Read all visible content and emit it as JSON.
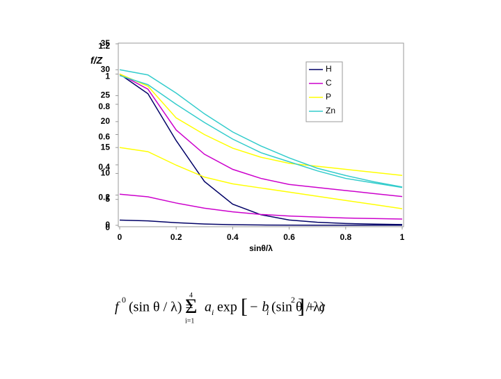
{
  "chart_data": {
    "type": "line",
    "y_label": "f/Z",
    "x_label": "sinθ/λ",
    "x": [
      0,
      0.1,
      0.2,
      0.3,
      0.4,
      0.5,
      0.6,
      0.7,
      0.8,
      0.9,
      1
    ],
    "xlim": [
      0,
      1
    ],
    "xticks": [
      0,
      0.2,
      0.4,
      0.6,
      0.8,
      1
    ],
    "ylim": [
      0,
      1.2
    ],
    "yticks": [
      0,
      0.2,
      0.4,
      0.6,
      0.8,
      1,
      1.2
    ],
    "y2lim": [
      0,
      35
    ],
    "y2ticks": [
      0,
      5,
      10,
      15,
      20,
      25,
      30,
      35
    ],
    "legend": "top-right",
    "series": [
      {
        "name": "H",
        "color": "#000066",
        "values": [
          1,
          0.87,
          0.56,
          0.29,
          0.14,
          0.07,
          0.035,
          0.02,
          0.012,
          0.008,
          0.005
        ]
      },
      {
        "name": "C",
        "color": "#cc00cc",
        "values": [
          1,
          0.9,
          0.63,
          0.47,
          0.37,
          0.31,
          0.27,
          0.25,
          0.23,
          0.21,
          0.19
        ]
      },
      {
        "name": "P",
        "color": "#ffff00",
        "values": [
          1,
          0.92,
          0.71,
          0.6,
          0.51,
          0.45,
          0.41,
          0.39,
          0.37,
          0.35,
          0.33
        ]
      },
      {
        "name": "Zn",
        "color": "#33cccc",
        "values": [
          0.99,
          0.93,
          0.8,
          0.68,
          0.57,
          0.48,
          0.42,
          0.36,
          0.31,
          0.28,
          0.25
        ]
      },
      {
        "color": "#000066",
        "axis": "y2",
        "values": [
          1,
          0.85,
          0.5,
          0.25,
          0.12,
          0.06,
          0.03,
          0.02,
          0.01,
          0.01,
          0.01
        ]
      },
      {
        "color": "#cc00cc",
        "axis": "y2",
        "values": [
          6,
          5.5,
          4.3,
          3.3,
          2.6,
          2.1,
          1.8,
          1.6,
          1.4,
          1.3,
          1.2
        ]
      },
      {
        "color": "#ffff00",
        "axis": "y2",
        "values": [
          15,
          14.2,
          11.6,
          9.3,
          8,
          7.2,
          6.4,
          5.6,
          4.8,
          4,
          3.2
        ]
      },
      {
        "color": "#33cccc",
        "axis": "y2",
        "values": [
          30,
          29,
          25.5,
          21.5,
          18,
          15.3,
          13,
          11,
          9.6,
          8.4,
          7.4
        ]
      }
    ]
  },
  "formula": {
    "f": "f",
    "f_sup": "0",
    "arg": "(sin θ / λ) =",
    "sum": "Σ",
    "sum_top": "4",
    "sum_bottom": "i=1",
    "a": "a",
    "a_sub": "i",
    "exp": "exp",
    "open": "[",
    "b": "− b",
    "b_sub": "i",
    "arg2": "(sin θ / λ)",
    "sq": "2",
    "close": "]",
    "c": "+ c"
  }
}
